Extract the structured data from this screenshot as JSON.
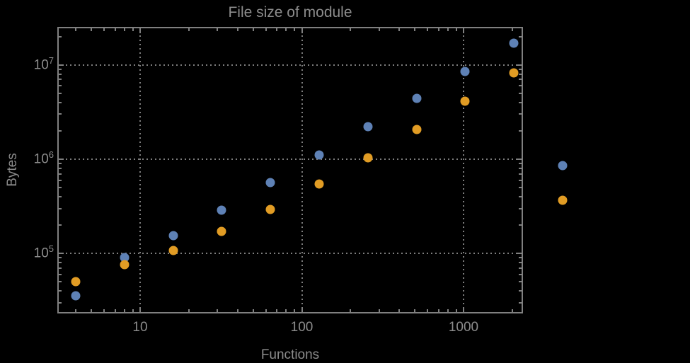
{
  "title": "File size of module",
  "axes": {
    "x": {
      "label": "Functions",
      "scale": "log",
      "major_ticks": [
        {
          "value": 10,
          "label": "10"
        },
        {
          "value": 100,
          "label": "100"
        },
        {
          "value": 1000,
          "label": "1000"
        }
      ]
    },
    "y": {
      "label": "Bytes",
      "scale": "log",
      "major_ticks": [
        {
          "value": 100000,
          "base": "10",
          "exp": "5"
        },
        {
          "value": 1000000,
          "base": "10",
          "exp": "6"
        },
        {
          "value": 10000000,
          "base": "10",
          "exp": "7"
        }
      ]
    }
  },
  "colors": {
    "background": "#000000",
    "text": "#8c8c8c",
    "frame": "#808080",
    "grid": "#7d7d7d",
    "series_blue": "#5e81b5",
    "series_orange": "#e19c24"
  },
  "chart_data": {
    "type": "scatter",
    "title": "File size of module",
    "xlabel": "Functions",
    "ylabel": "Bytes",
    "x_scale": "log",
    "y_scale": "log",
    "xlim": [
      3.1,
      2330
    ],
    "ylim": [
      23000,
      25000000
    ],
    "grid": "dotted lines at decade ticks (10,100,1000 on x; 1e5,1e6,1e7 on y)",
    "legend_position": "none",
    "x": [
      4,
      8,
      16,
      32,
      64,
      128,
      256,
      512,
      1024,
      2048,
      4096
    ],
    "series": [
      {
        "name": "series-blue",
        "color": "#5e81b5",
        "values": [
          35500,
          90000,
          155000,
          288000,
          565000,
          1110000,
          2210000,
          4430000,
          8530000,
          17000000,
          856000
        ]
      },
      {
        "name": "series-orange",
        "color": "#e19c24",
        "values": [
          50000,
          76000,
          107000,
          171000,
          293000,
          546000,
          1040000,
          2070000,
          4130000,
          8240000,
          366000
        ]
      }
    ],
    "note": "last data points (x=4096) are drawn beyond the right edge of the plot frame (unclipped)"
  }
}
